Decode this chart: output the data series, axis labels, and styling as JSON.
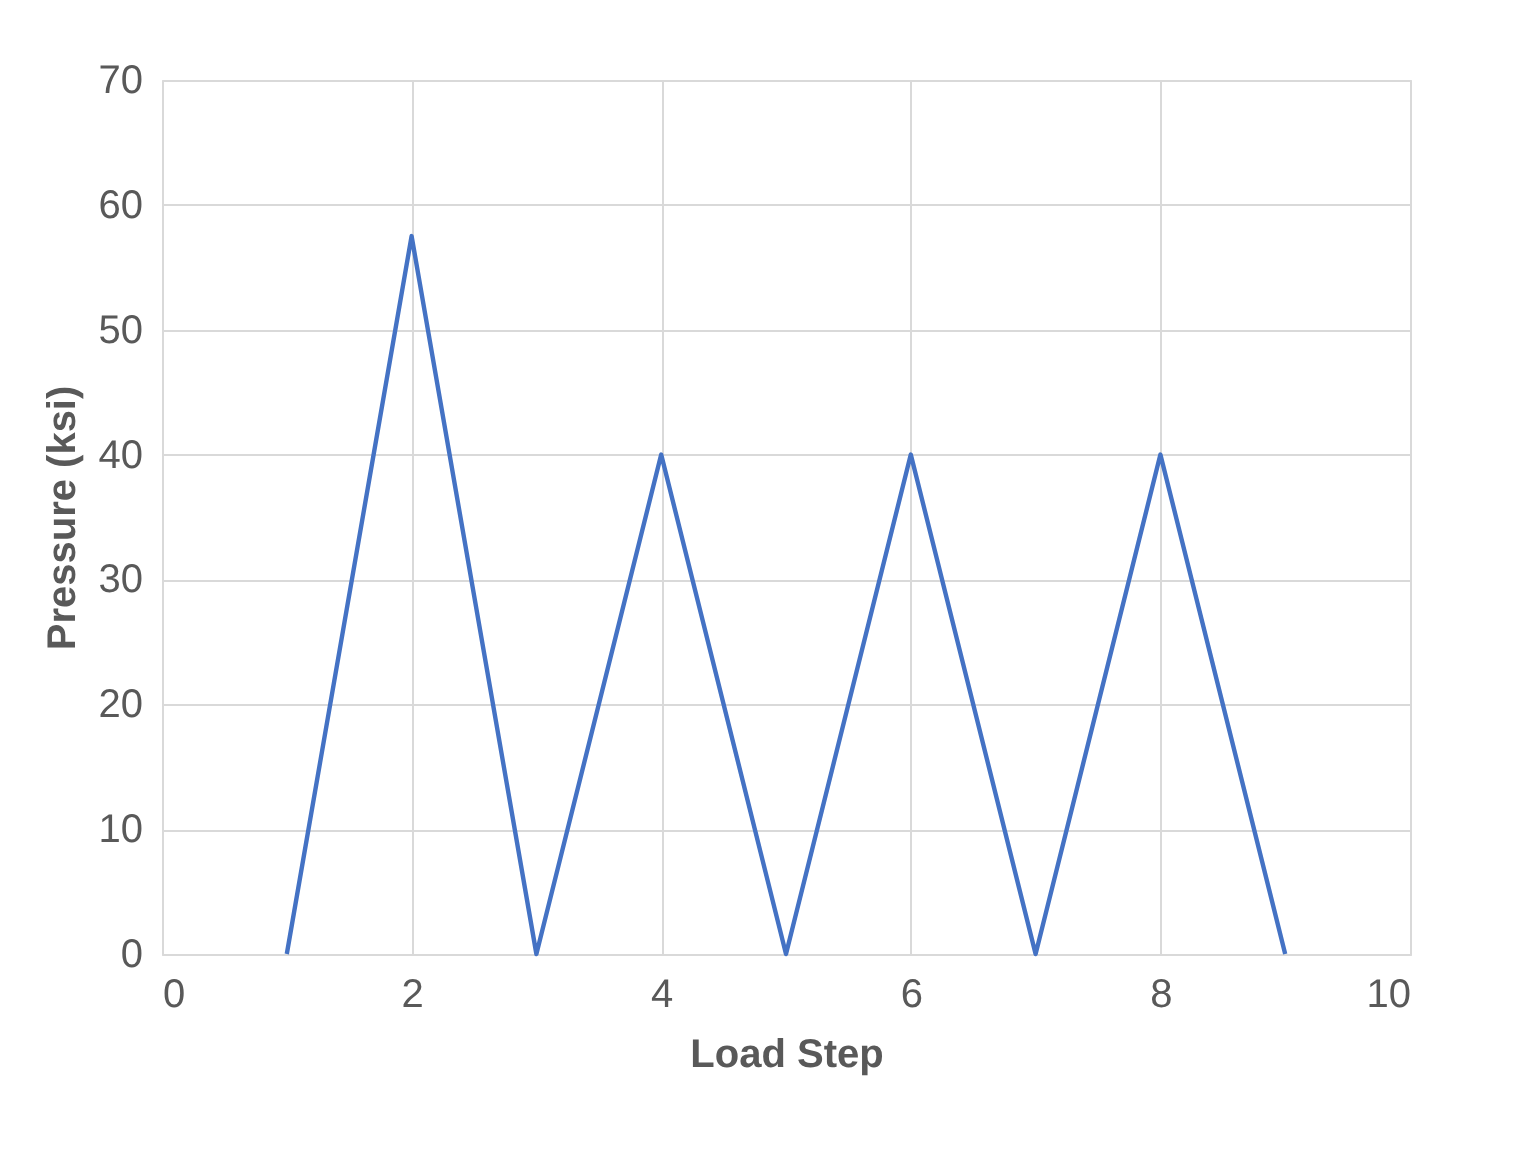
{
  "chart_data": {
    "type": "line",
    "xlabel": "Load Step",
    "ylabel": "Pressure (ksi)",
    "x": [
      1,
      2,
      3,
      4,
      5,
      6,
      7,
      8,
      9
    ],
    "series": [
      {
        "color": "#4472c4",
        "values": [
          0,
          57.5,
          0,
          40,
          0,
          40,
          0,
          40,
          0
        ]
      }
    ],
    "xlim": [
      0,
      10
    ],
    "xticks": [
      0,
      2,
      4,
      6,
      8,
      10
    ],
    "ylim": [
      0,
      70
    ],
    "yticks": [
      0,
      10,
      20,
      30,
      40,
      50,
      60,
      70
    ],
    "grid": true,
    "marker": "none",
    "line_style": "solid"
  }
}
